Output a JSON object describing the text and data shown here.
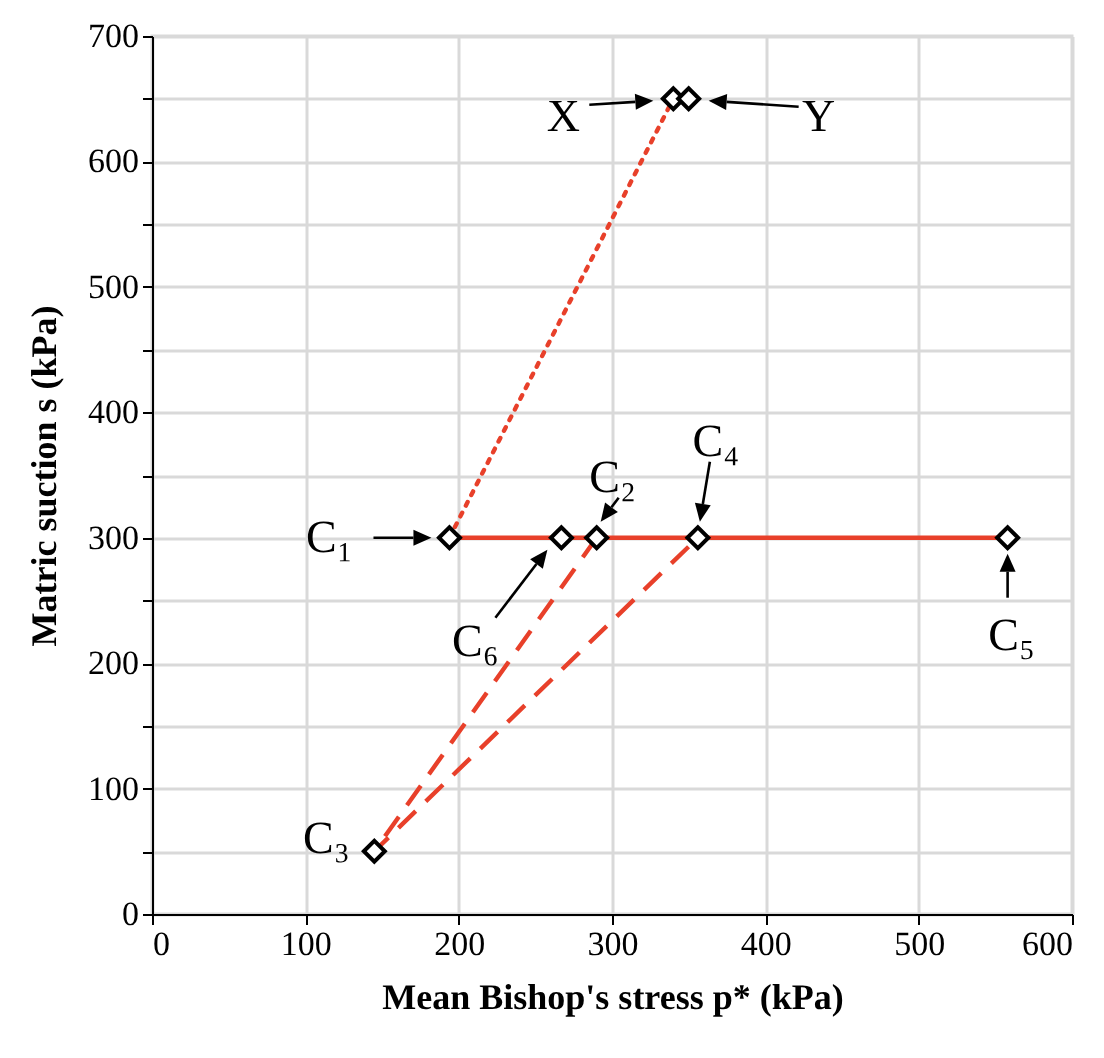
{
  "chart_data": {
    "type": "line",
    "xlabel": "Mean Bishop's stress  p*  (kPa)",
    "ylabel": "Matric suction s  (kPa)",
    "xlim": [
      0,
      600
    ],
    "xticks": [
      0,
      100,
      200,
      300,
      400,
      500,
      600
    ],
    "ylim": [
      0,
      700
    ],
    "yticks": [
      0,
      {
        "value": 50,
        "label": null
      },
      100,
      {
        "value": 150,
        "label": null
      },
      200,
      {
        "value": 250,
        "label": null
      },
      300,
      {
        "value": 350,
        "label": null
      },
      400,
      {
        "value": 450,
        "label": null
      },
      500,
      {
        "value": 550,
        "label": null
      },
      600,
      {
        "value": 650,
        "label": null
      },
      700
    ],
    "grid": true,
    "series": [
      {
        "type": "line",
        "line_style": "solid",
        "color": "#e8402a",
        "x": [
          194,
          267,
          290,
          356,
          558
        ],
        "values": [
          300,
          300,
          300,
          300,
          300
        ]
      },
      {
        "type": "line",
        "line_style": "dotted",
        "color": "#e8402a",
        "x": [
          194,
          340
        ],
        "values": [
          300,
          650
        ]
      },
      {
        "type": "line",
        "line_style": "dashed",
        "color": "#e8402a",
        "x": [
          290,
          145,
          356
        ],
        "values": [
          300,
          50,
          300
        ]
      },
      {
        "type": "scatter",
        "marker": "diamond",
        "color": "#000000",
        "x": [
          194,
          290,
          145,
          356,
          558,
          267,
          340,
          350
        ],
        "values": [
          300,
          300,
          50,
          300,
          300,
          300,
          650,
          650
        ]
      }
    ],
    "annotations": [
      {
        "text": "C₁",
        "x": 194,
        "y": 300
      },
      {
        "text": "C₂",
        "x": 290,
        "y": 300
      },
      {
        "text": "C₃",
        "x": 145,
        "y": 50
      },
      {
        "text": "C₄",
        "x": 356,
        "y": 300
      },
      {
        "text": "C₅",
        "x": 558,
        "y": 300
      },
      {
        "text": "C₆",
        "x": 267,
        "y": 300
      },
      {
        "text": "X",
        "x": 340,
        "y": 650
      },
      {
        "text": "Y",
        "x": 350,
        "y": 650
      }
    ]
  }
}
